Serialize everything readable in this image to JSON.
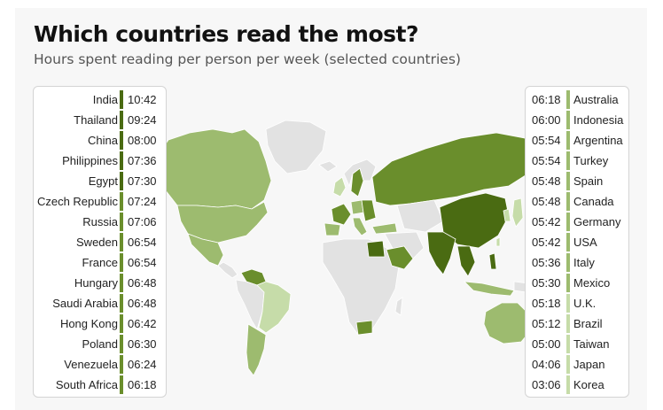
{
  "title": "Which countries read the most?",
  "subtitle": "Hours spent reading per person per week (selected countries)",
  "colors": {
    "tier1": "#4a6b12",
    "tier2": "#6a8e2c",
    "tier3": "#9dbb6f",
    "tier4": "#c6dca9",
    "nodata": "#e2e2e2"
  },
  "legend": {
    "left": [
      {
        "country": "India",
        "time": "10:42",
        "tier": "tier1"
      },
      {
        "country": "Thailand",
        "time": "09:24",
        "tier": "tier1"
      },
      {
        "country": "China",
        "time": "08:00",
        "tier": "tier1"
      },
      {
        "country": "Philippines",
        "time": "07:36",
        "tier": "tier1"
      },
      {
        "country": "Egypt",
        "time": "07:30",
        "tier": "tier1"
      },
      {
        "country": "Czech Republic",
        "time": "07:24",
        "tier": "tier2"
      },
      {
        "country": "Russia",
        "time": "07:06",
        "tier": "tier2"
      },
      {
        "country": "Sweden",
        "time": "06:54",
        "tier": "tier2"
      },
      {
        "country": "France",
        "time": "06:54",
        "tier": "tier2"
      },
      {
        "country": "Hungary",
        "time": "06:48",
        "tier": "tier2"
      },
      {
        "country": "Saudi Arabia",
        "time": "06:48",
        "tier": "tier2"
      },
      {
        "country": "Hong Kong",
        "time": "06:42",
        "tier": "tier2"
      },
      {
        "country": "Poland",
        "time": "06:30",
        "tier": "tier2"
      },
      {
        "country": "Venezuela",
        "time": "06:24",
        "tier": "tier2"
      },
      {
        "country": "South Africa",
        "time": "06:18",
        "tier": "tier2"
      }
    ],
    "right": [
      {
        "country": "Australia",
        "time": "06:18",
        "tier": "tier3"
      },
      {
        "country": "Indonesia",
        "time": "06:00",
        "tier": "tier3"
      },
      {
        "country": "Argentina",
        "time": "05:54",
        "tier": "tier3"
      },
      {
        "country": "Turkey",
        "time": "05:54",
        "tier": "tier3"
      },
      {
        "country": "Spain",
        "time": "05:48",
        "tier": "tier3"
      },
      {
        "country": "Canada",
        "time": "05:48",
        "tier": "tier3"
      },
      {
        "country": "Germany",
        "time": "05:42",
        "tier": "tier3"
      },
      {
        "country": "USA",
        "time": "05:42",
        "tier": "tier3"
      },
      {
        "country": "Italy",
        "time": "05:36",
        "tier": "tier3"
      },
      {
        "country": "Mexico",
        "time": "05:30",
        "tier": "tier3"
      },
      {
        "country": "U.K.",
        "time": "05:18",
        "tier": "tier4"
      },
      {
        "country": "Brazil",
        "time": "05:12",
        "tier": "tier4"
      },
      {
        "country": "Taiwan",
        "time": "05:00",
        "tier": "tier4"
      },
      {
        "country": "Japan",
        "time": "04:06",
        "tier": "tier4"
      },
      {
        "country": "Korea",
        "time": "03:06",
        "tier": "tier4"
      }
    ]
  }
}
